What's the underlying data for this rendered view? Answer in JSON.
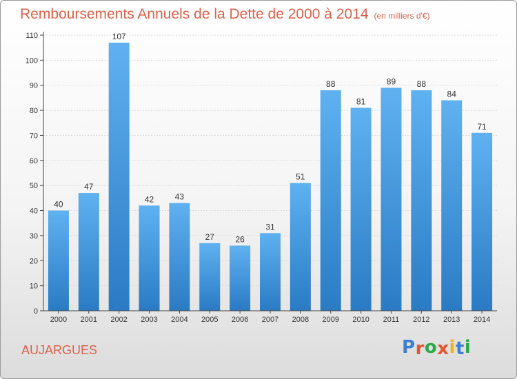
{
  "chart_data": {
    "type": "bar",
    "title": "Remboursements Annuels de la Dette de 2000 à 2014",
    "subtitle": "(en milliers d'€)",
    "categories": [
      "2000",
      "2001",
      "2002",
      "2003",
      "2004",
      "2005",
      "2006",
      "2007",
      "2008",
      "2009",
      "2010",
      "2011",
      "2012",
      "2013",
      "2014"
    ],
    "values": [
      40,
      47,
      107,
      42,
      43,
      27,
      26,
      31,
      51,
      88,
      81,
      89,
      88,
      84,
      71
    ],
    "ylim": [
      0,
      110
    ],
    "yticks": [
      0,
      10,
      20,
      30,
      40,
      50,
      60,
      70,
      80,
      90,
      100,
      110
    ],
    "xlabel": "",
    "ylabel": "",
    "grid": true,
    "bar_color": "#3a8fd6"
  },
  "footer": {
    "town": "AUJARGUES",
    "logo_text": "Proxiti",
    "logo_letters": [
      "P",
      "r",
      "o",
      "x",
      "i",
      "t",
      "i"
    ],
    "logo_colors": [
      "#3b7fd4",
      "#e8542e",
      "#2aa84a",
      "#e8542e",
      "#f2b21b",
      "#3b7fd4",
      "#2aa84a"
    ]
  }
}
